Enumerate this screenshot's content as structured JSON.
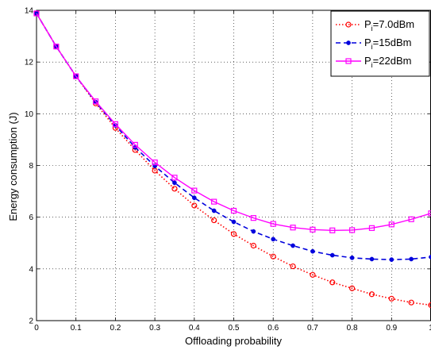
{
  "chart_data": {
    "type": "line",
    "xlabel": "Offloading probability",
    "ylabel": "Energy consumption (J)",
    "xlim": [
      0,
      1
    ],
    "ylim": [
      2,
      14
    ],
    "xticks": [
      "0",
      "0.1",
      "0.2",
      "0.3",
      "0.4",
      "0.5",
      "0.6",
      "0.7",
      "0.8",
      "0.9",
      "1"
    ],
    "yticks": [
      "2",
      "4",
      "6",
      "8",
      "10",
      "12",
      "14"
    ],
    "grid": true,
    "legend_position": "top-right",
    "x": [
      0,
      0.05,
      0.1,
      0.15,
      0.2,
      0.25,
      0.3,
      0.35,
      0.4,
      0.45,
      0.5,
      0.55,
      0.6,
      0.65,
      0.7,
      0.75,
      0.8,
      0.85,
      0.9,
      0.95,
      1.0
    ],
    "series": [
      {
        "legend_main": "P",
        "legend_sub": "i",
        "legend_rest": "=7.0dBm",
        "color": "#ff0000",
        "line": "dotted",
        "marker": "circle",
        "values": [
          13.88,
          12.6,
          11.45,
          10.4,
          9.45,
          8.6,
          7.8,
          7.1,
          6.45,
          5.88,
          5.35,
          4.9,
          4.48,
          4.1,
          3.77,
          3.48,
          3.25,
          3.02,
          2.85,
          2.7,
          2.6
        ]
      },
      {
        "legend_main": "P",
        "legend_sub": "i",
        "legend_rest": "=15dBm",
        "color": "#0000dd",
        "line": "dashed",
        "marker": "dot",
        "values": [
          13.88,
          12.6,
          11.45,
          10.45,
          9.55,
          8.7,
          7.98,
          7.33,
          6.75,
          6.25,
          5.82,
          5.45,
          5.15,
          4.9,
          4.68,
          4.53,
          4.43,
          4.38,
          4.36,
          4.38,
          4.46
        ]
      },
      {
        "legend_main": "P",
        "legend_sub": "i",
        "legend_rest": "=22dBm",
        "color": "#ff00ff",
        "line": "solid",
        "marker": "square",
        "values": [
          13.88,
          12.6,
          11.45,
          10.48,
          9.6,
          8.8,
          8.12,
          7.53,
          7.03,
          6.6,
          6.25,
          5.97,
          5.74,
          5.6,
          5.52,
          5.49,
          5.5,
          5.58,
          5.72,
          5.92,
          6.15
        ]
      }
    ]
  }
}
